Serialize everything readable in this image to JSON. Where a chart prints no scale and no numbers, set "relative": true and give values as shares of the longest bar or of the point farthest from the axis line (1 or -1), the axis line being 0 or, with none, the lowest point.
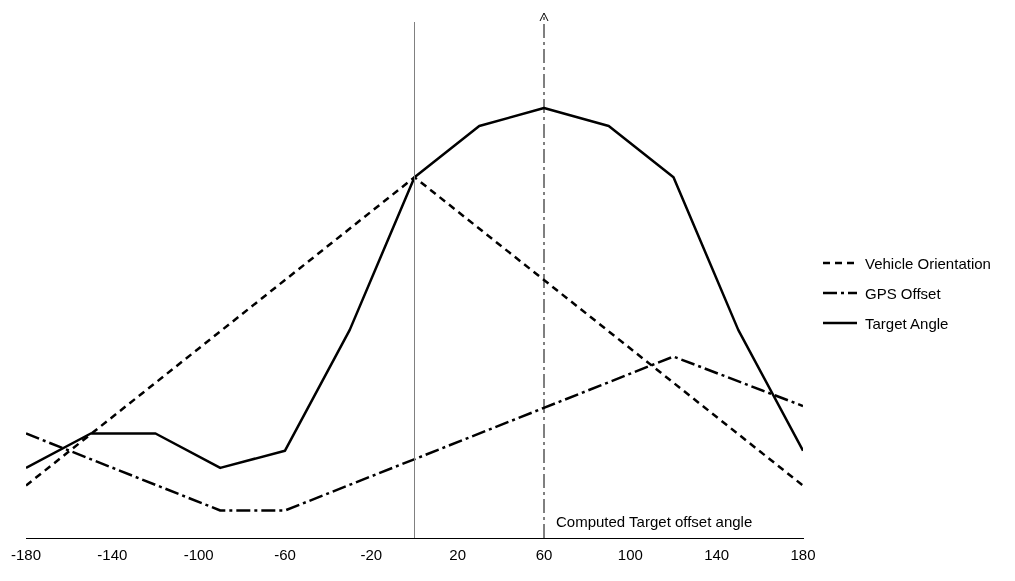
{
  "chart_data": {
    "type": "line",
    "relative": true,
    "xlim": [
      -180,
      180
    ],
    "xticks": [
      -180,
      -140,
      -100,
      -60,
      -20,
      20,
      60,
      100,
      140,
      180
    ],
    "legend": "right",
    "grid": false,
    "marker": "none",
    "series": [
      {
        "name": "Vehicle Orientation",
        "color": "#000000",
        "line_style": "dashed",
        "x": [
          -180,
          0,
          180
        ],
        "values": [
          0.122,
          0.839,
          0.122
        ]
      },
      {
        "name": "GPS Offset",
        "color": "#000000",
        "line_style": "dashdot",
        "x": [
          -180,
          -90,
          -60,
          120,
          180
        ],
        "values": [
          0.243,
          0.064,
          0.064,
          0.422,
          0.307
        ]
      },
      {
        "name": "Target Angle",
        "color": "#000000",
        "line_style": "solid",
        "x": [
          -180,
          -150,
          -120,
          -90,
          -60,
          -30,
          0,
          30,
          60,
          90,
          120,
          150,
          180
        ],
        "values": [
          0.163,
          0.243,
          0.243,
          0.163,
          0.203,
          0.484,
          0.839,
          0.958,
          1,
          0.958,
          0.839,
          0.484,
          0.203
        ]
      }
    ],
    "ref_lines": [
      {
        "axis": "x",
        "value": 0,
        "color": "#808080",
        "line_style": "solid"
      },
      {
        "axis": "x",
        "value": 60,
        "color": "#000000",
        "line_style": "dashdot",
        "label": "Computed Target offset angle"
      }
    ]
  }
}
